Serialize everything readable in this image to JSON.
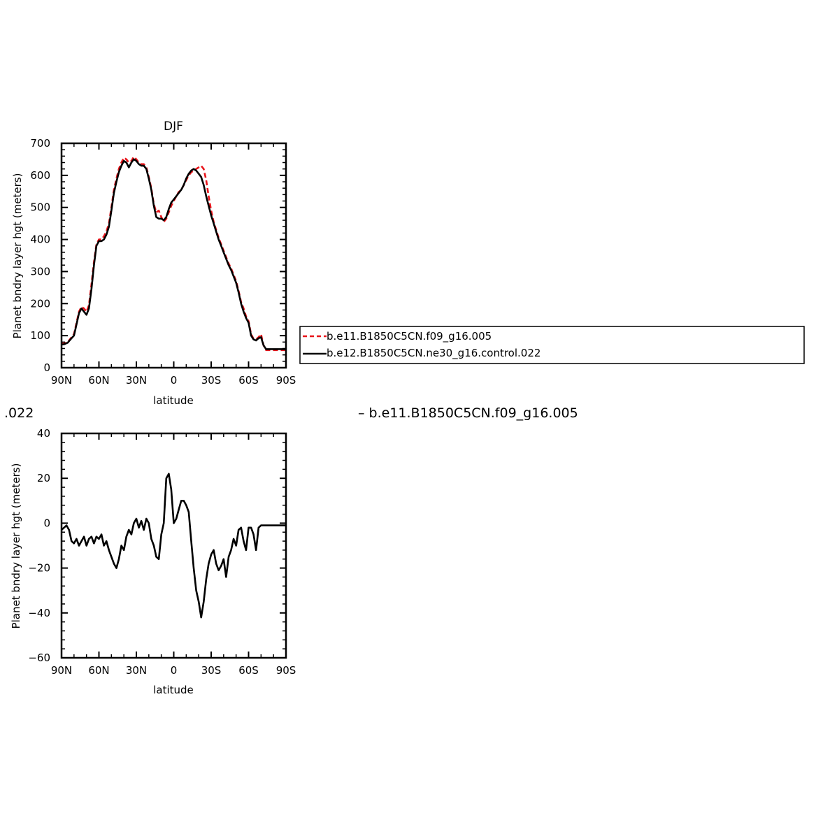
{
  "chart_data": [
    {
      "type": "line",
      "title": "DJF",
      "xlabel": "latitude",
      "ylabel": "Planet bndry layer hgt (meters)",
      "xlim": [
        90,
        -90
      ],
      "ylim": [
        0,
        700
      ],
      "x_tick_values": [
        90,
        60,
        30,
        0,
        -30,
        -60,
        -90
      ],
      "x_tick_labels": [
        "90N",
        "60N",
        "30N",
        "0",
        "30S",
        "60S",
        "90S"
      ],
      "y_tick_values": [
        0,
        100,
        200,
        300,
        400,
        500,
        600,
        700
      ],
      "y_tick_labels": [
        "0",
        "100",
        "200",
        "300",
        "400",
        "500",
        "600",
        "700"
      ],
      "legend": {
        "placement": "right, outside plot"
      },
      "series": [
        {
          "name": "b.e11.B1850C5CN.f09_g16.005",
          "color": "#e8141a",
          "dash": "dashed",
          "x": [
            90,
            88,
            85,
            82,
            80,
            78,
            76,
            74,
            72,
            70,
            68,
            66,
            64,
            62,
            60,
            58,
            56,
            54,
            52,
            50,
            48,
            46,
            44,
            42,
            40,
            38,
            36,
            34,
            32,
            30,
            28,
            26,
            24,
            22,
            20,
            18,
            16,
            14,
            12,
            10,
            8,
            6,
            4,
            2,
            0,
            -2,
            -4,
            -6,
            -8,
            -10,
            -12,
            -14,
            -16,
            -18,
            -20,
            -22,
            -24,
            -26,
            -28,
            -30,
            -32,
            -34,
            -36,
            -38,
            -40,
            -42,
            -44,
            -46,
            -48,
            -50,
            -52,
            -54,
            -56,
            -58,
            -60,
            -62,
            -64,
            -66,
            -68,
            -70,
            -72,
            -74,
            -76,
            -78,
            -80,
            -82,
            -84,
            -86,
            -88,
            -90
          ],
          "y": [
            75,
            75,
            80,
            95,
            105,
            140,
            175,
            190,
            185,
            175,
            195,
            260,
            330,
            385,
            400,
            400,
            410,
            425,
            450,
            500,
            555,
            590,
            620,
            640,
            655,
            650,
            640,
            645,
            658,
            650,
            640,
            635,
            635,
            625,
            595,
            560,
            510,
            485,
            490,
            470,
            455,
            465,
            485,
            505,
            520,
            535,
            548,
            555,
            570,
            585,
            600,
            610,
            615,
            620,
            625,
            630,
            620,
            585,
            535,
            490,
            455,
            430,
            405,
            385,
            365,
            345,
            325,
            310,
            290,
            270,
            240,
            205,
            185,
            160,
            145,
            105,
            90,
            88,
            95,
            105,
            70,
            55,
            55,
            55,
            55,
            55,
            55,
            55,
            55,
            55
          ]
        },
        {
          "name": "b.e12.B1850C5CN.ne30_g16.control.022",
          "color": "#000000",
          "dash": "solid",
          "x": [
            90,
            88,
            85,
            82,
            80,
            78,
            76,
            74,
            72,
            70,
            68,
            66,
            64,
            62,
            60,
            58,
            56,
            54,
            52,
            50,
            48,
            46,
            44,
            42,
            40,
            38,
            36,
            34,
            32,
            30,
            28,
            26,
            24,
            22,
            20,
            18,
            16,
            14,
            12,
            10,
            8,
            6,
            4,
            2,
            0,
            -2,
            -4,
            -6,
            -8,
            -10,
            -12,
            -14,
            -16,
            -18,
            -20,
            -22,
            -24,
            -26,
            -28,
            -30,
            -32,
            -34,
            -36,
            -38,
            -40,
            -42,
            -44,
            -46,
            -48,
            -50,
            -52,
            -54,
            -56,
            -58,
            -60,
            -62,
            -64,
            -66,
            -68,
            -70,
            -72,
            -74,
            -76,
            -78,
            -80,
            -82,
            -84,
            -86,
            -88,
            -90
          ],
          "y": [
            72,
            73,
            78,
            92,
            100,
            135,
            170,
            185,
            175,
            165,
            185,
            245,
            320,
            380,
            395,
            395,
            400,
            415,
            440,
            490,
            545,
            580,
            610,
            630,
            645,
            640,
            625,
            640,
            650,
            645,
            635,
            630,
            630,
            620,
            590,
            555,
            505,
            470,
            465,
            465,
            460,
            470,
            495,
            515,
            525,
            535,
            545,
            555,
            570,
            590,
            605,
            615,
            620,
            615,
            605,
            595,
            570,
            535,
            505,
            475,
            450,
            425,
            400,
            380,
            360,
            340,
            320,
            305,
            285,
            265,
            235,
            200,
            175,
            155,
            140,
            100,
            88,
            85,
            92,
            95,
            70,
            58,
            58,
            58,
            58,
            58,
            58,
            58,
            58,
            58
          ]
        }
      ]
    },
    {
      "type": "line",
      "title": "",
      "title_fragment_left": ".022",
      "title_fragment_right": "– b.e11.B1850C5CN.f09_g16.005",
      "xlabel": "latitude",
      "ylabel": "Planet bndry layer hgt (meters)",
      "xlim": [
        90,
        -90
      ],
      "ylim": [
        -60,
        40
      ],
      "x_tick_values": [
        90,
        60,
        30,
        0,
        -30,
        -60,
        -90
      ],
      "x_tick_labels": [
        "90N",
        "60N",
        "30N",
        "0",
        "30S",
        "60S",
        "90S"
      ],
      "y_tick_values": [
        -60,
        -40,
        -20,
        0,
        20,
        40
      ],
      "y_tick_labels": [
        "−60",
        "−40",
        "−20",
        "0",
        "20",
        "40"
      ],
      "series": [
        {
          "color": "#000000",
          "dash": "solid",
          "x": [
            90,
            88,
            86,
            84,
            82,
            80,
            78,
            76,
            74,
            72,
            70,
            68,
            66,
            64,
            62,
            60,
            58,
            56,
            54,
            52,
            50,
            48,
            46,
            44,
            42,
            40,
            38,
            36,
            34,
            32,
            30,
            28,
            26,
            24,
            22,
            20,
            18,
            16,
            14,
            12,
            10,
            8,
            6,
            4,
            2,
            0,
            -2,
            -4,
            -6,
            -8,
            -10,
            -12,
            -14,
            -16,
            -18,
            -20,
            -22,
            -24,
            -26,
            -28,
            -30,
            -32,
            -34,
            -36,
            -38,
            -40,
            -42,
            -44,
            -46,
            -48,
            -50,
            -52,
            -54,
            -56,
            -58,
            -60,
            -62,
            -64,
            -66,
            -68,
            -70,
            -72,
            -74,
            -76,
            -78,
            -80,
            -82,
            -84,
            -86,
            -88,
            -90
          ],
          "y": [
            -3,
            -2,
            -1,
            -3,
            -8,
            -9,
            -7,
            -10,
            -8,
            -6,
            -10,
            -7,
            -6,
            -9,
            -6,
            -7,
            -5,
            -10,
            -8,
            -12,
            -15,
            -18,
            -20,
            -16,
            -10,
            -12,
            -6,
            -3,
            -5,
            0,
            2,
            -2,
            1,
            -3,
            2,
            0,
            -7,
            -10,
            -15,
            -16,
            -5,
            0,
            20,
            22,
            15,
            0,
            2,
            6,
            10,
            10,
            8,
            5,
            -8,
            -20,
            -30,
            -35,
            -42,
            -35,
            -25,
            -18,
            -14,
            -12,
            -18,
            -21,
            -19,
            -16,
            -24,
            -15,
            -12,
            -7,
            -10,
            -3,
            -2,
            -8,
            -12,
            -2,
            -2,
            -5,
            -12,
            -2,
            -1,
            -1,
            -1,
            -1,
            -1,
            -1,
            -1,
            -1,
            -1,
            -1,
            -1
          ]
        }
      ]
    }
  ]
}
